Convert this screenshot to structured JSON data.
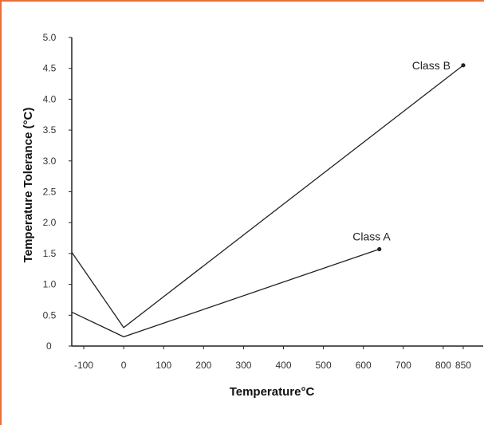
{
  "colors": {
    "frame": "#e8703a",
    "line": "#222222",
    "axis": "#222222"
  },
  "chart_data": {
    "type": "line",
    "title": "",
    "xlabel": "Temperature°C",
    "ylabel": "Temperature Tolerance (°C)",
    "xlim": [
      -130,
      900
    ],
    "ylim": [
      0,
      5.0
    ],
    "x_ticks": [
      -100,
      0,
      100,
      200,
      300,
      400,
      500,
      600,
      700,
      800,
      850
    ],
    "x_tick_labels": [
      "-100",
      "0",
      "100",
      "200",
      "300",
      "400",
      "500",
      "600",
      "700",
      "800",
      "850"
    ],
    "y_ticks": [
      0,
      0.5,
      1.0,
      1.5,
      2.0,
      2.5,
      3.0,
      3.5,
      4.0,
      4.5,
      5.0
    ],
    "y_tick_labels": [
      "0",
      "0.5",
      "1.0",
      "1.5",
      "2.0",
      "2.5",
      "3.0",
      "3.5",
      "4.0",
      "4.5",
      "5.0"
    ],
    "grid": false,
    "series": [
      {
        "name": "Class B",
        "points": [
          [
            -130,
            1.52
          ],
          [
            0,
            0.3
          ],
          [
            850,
            4.55
          ]
        ]
      },
      {
        "name": "Class A",
        "points": [
          [
            -130,
            0.55
          ],
          [
            0,
            0.15
          ],
          [
            640,
            1.57
          ]
        ]
      }
    ]
  }
}
